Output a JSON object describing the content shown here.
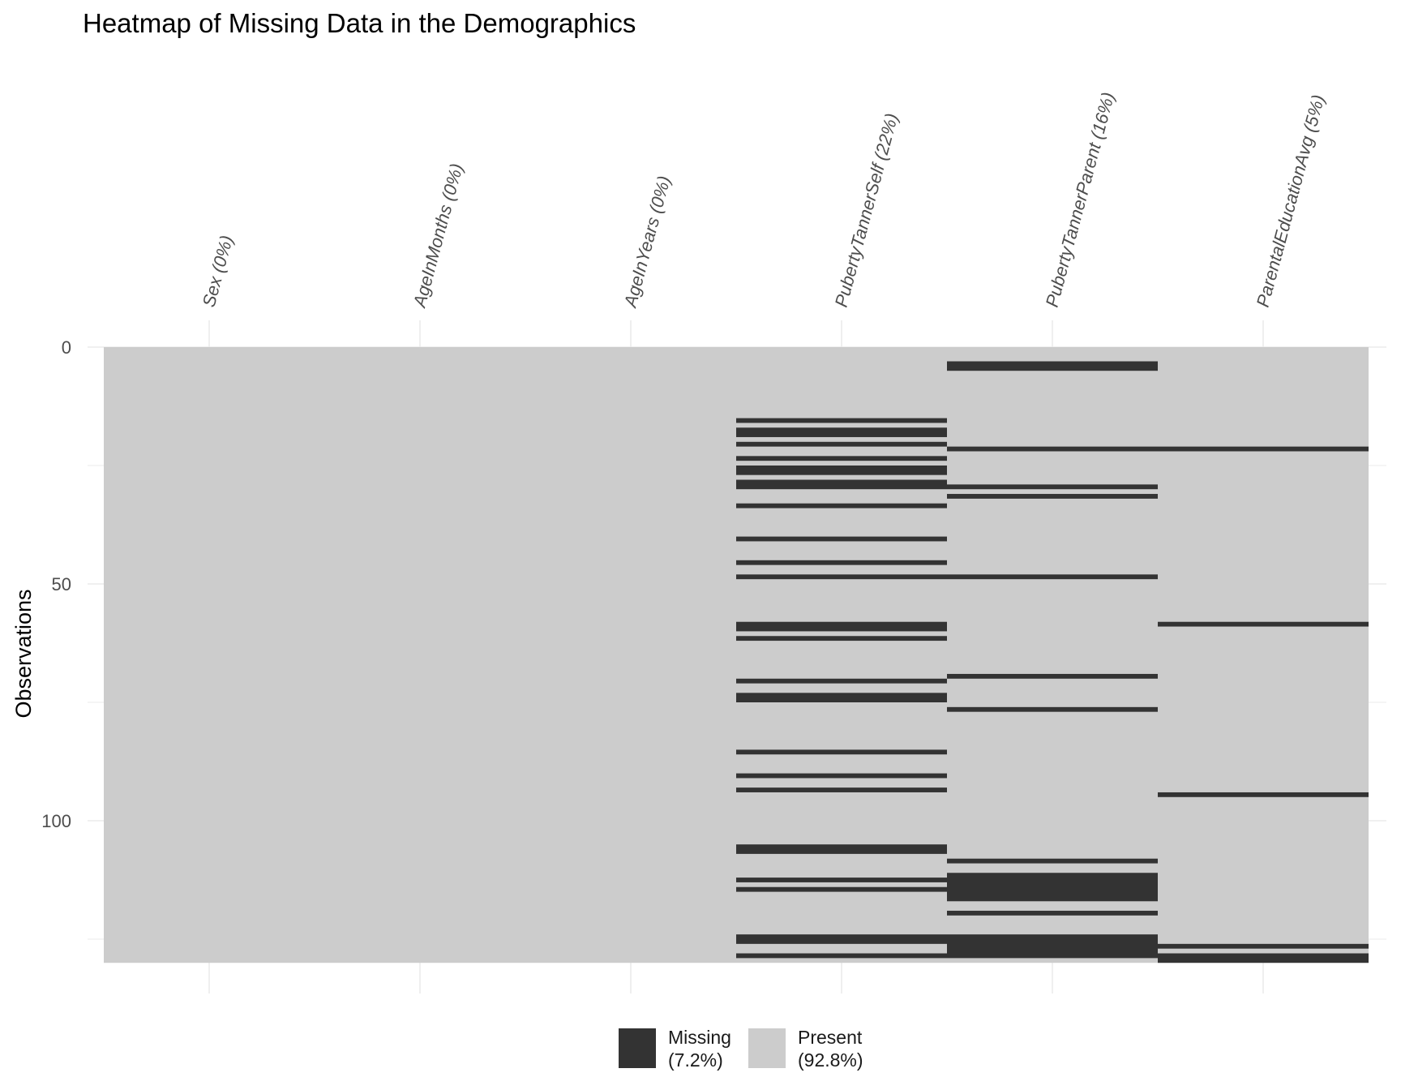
{
  "chart_data": {
    "type": "heatmap",
    "title": "Heatmap of Missing Data in the Demographics",
    "xlabel": "",
    "ylabel": "Observations",
    "n_observations": 130,
    "y_ticks": [
      0,
      50,
      100
    ],
    "ylim": [
      0,
      130
    ],
    "grid": true,
    "legend_position": "bottom",
    "columns": [
      "Sex (0%)",
      "AgeInMonths (0%)",
      "AgeInYears (0%)",
      "PubertyTannerSelf (22%)",
      "PubertyTannerParent (16%)",
      "ParentalEducationAvg (5%)"
    ],
    "missing_ranges": [
      [],
      [],
      [],
      [
        [
          15,
          16
        ],
        [
          17,
          19
        ],
        [
          20,
          21
        ],
        [
          23,
          24
        ],
        [
          25,
          27
        ],
        [
          28,
          30
        ],
        [
          33,
          34
        ],
        [
          40,
          41
        ],
        [
          45,
          46
        ],
        [
          48,
          49
        ],
        [
          58,
          60
        ],
        [
          61,
          62
        ],
        [
          70,
          71
        ],
        [
          73,
          75
        ],
        [
          85,
          86
        ],
        [
          90,
          91
        ],
        [
          93,
          94
        ],
        [
          105,
          107
        ],
        [
          112,
          113
        ],
        [
          114,
          115
        ],
        [
          124,
          126
        ],
        [
          128,
          129
        ]
      ],
      [
        [
          3,
          5
        ],
        [
          21,
          22
        ],
        [
          29,
          30
        ],
        [
          31,
          32
        ],
        [
          48,
          49
        ],
        [
          69,
          70
        ],
        [
          76,
          77
        ],
        [
          108,
          109
        ],
        [
          111,
          117
        ],
        [
          119,
          120
        ],
        [
          124,
          129
        ]
      ],
      [
        [
          21,
          22
        ],
        [
          58,
          59
        ],
        [
          94,
          95
        ],
        [
          126,
          127
        ],
        [
          128,
          130
        ]
      ]
    ],
    "legend": [
      {
        "label": "Missing",
        "pct": "(7.2%)",
        "color": "#333333"
      },
      {
        "label": "Present",
        "pct": "(92.8%)",
        "color": "#cccccc"
      }
    ],
    "colors": {
      "missing": "#333333",
      "present": "#cccccc",
      "grid": "#ebebeb"
    }
  }
}
